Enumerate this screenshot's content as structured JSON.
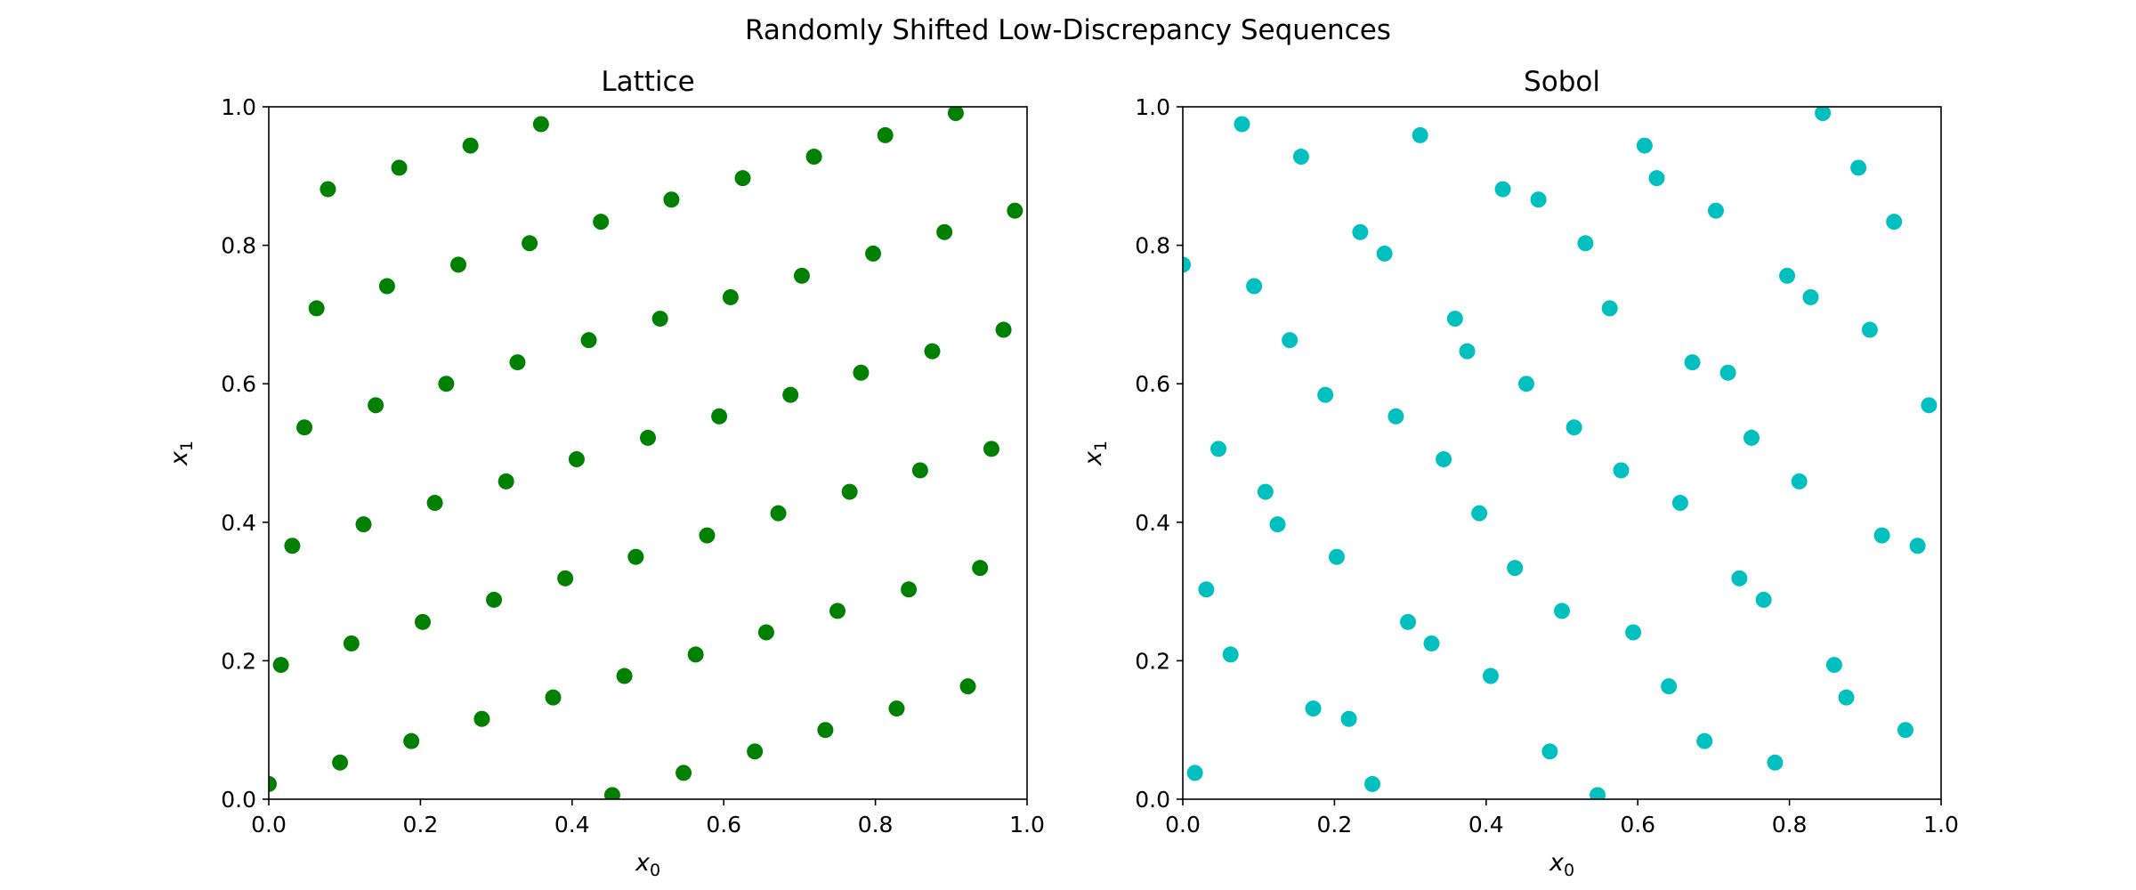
{
  "suptitle": "Randomly Shifted Low-Discrepancy Sequences",
  "chart_data": [
    {
      "type": "scatter",
      "title": "Lattice",
      "xlabel": "x",
      "xlabel_sub": "0",
      "ylabel": "x",
      "ylabel_sub": "1",
      "xlim": [
        0,
        1
      ],
      "ylim": [
        0,
        1
      ],
      "xticks": [
        "0.0",
        "0.2",
        "0.4",
        "0.6",
        "0.8",
        "1.0"
      ],
      "yticks": [
        "0.0",
        "0.2",
        "0.4",
        "0.6",
        "0.8",
        "1.0"
      ],
      "grid": false,
      "color": "#008000",
      "points": [
        [
          0.0,
          0.022
        ],
        [
          0.016,
          0.194
        ],
        [
          0.031,
          0.366
        ],
        [
          0.047,
          0.537
        ],
        [
          0.063,
          0.709
        ],
        [
          0.078,
          0.881
        ],
        [
          0.094,
          0.053
        ],
        [
          0.109,
          0.225
        ],
        [
          0.125,
          0.397
        ],
        [
          0.141,
          0.569
        ],
        [
          0.156,
          0.741
        ],
        [
          0.172,
          0.912
        ],
        [
          0.188,
          0.084
        ],
        [
          0.203,
          0.256
        ],
        [
          0.219,
          0.428
        ],
        [
          0.234,
          0.6
        ],
        [
          0.25,
          0.772
        ],
        [
          0.266,
          0.944
        ],
        [
          0.281,
          0.116
        ],
        [
          0.297,
          0.288
        ],
        [
          0.313,
          0.459
        ],
        [
          0.328,
          0.631
        ],
        [
          0.344,
          0.803
        ],
        [
          0.359,
          0.975
        ],
        [
          0.375,
          0.147
        ],
        [
          0.391,
          0.319
        ],
        [
          0.406,
          0.491
        ],
        [
          0.422,
          0.663
        ],
        [
          0.438,
          0.834
        ],
        [
          0.453,
          0.006
        ],
        [
          0.469,
          0.178
        ],
        [
          0.484,
          0.35
        ],
        [
          0.5,
          0.522
        ],
        [
          0.516,
          0.694
        ],
        [
          0.531,
          0.866
        ],
        [
          0.547,
          0.038
        ],
        [
          0.563,
          0.209
        ],
        [
          0.578,
          0.381
        ],
        [
          0.594,
          0.553
        ],
        [
          0.609,
          0.725
        ],
        [
          0.625,
          0.897
        ],
        [
          0.641,
          0.069
        ],
        [
          0.656,
          0.241
        ],
        [
          0.672,
          0.413
        ],
        [
          0.688,
          0.584
        ],
        [
          0.703,
          0.756
        ],
        [
          0.719,
          0.928
        ],
        [
          0.734,
          0.1
        ],
        [
          0.75,
          0.272
        ],
        [
          0.766,
          0.444
        ],
        [
          0.781,
          0.616
        ],
        [
          0.797,
          0.788
        ],
        [
          0.813,
          0.959
        ],
        [
          0.828,
          0.131
        ],
        [
          0.844,
          0.303
        ],
        [
          0.859,
          0.475
        ],
        [
          0.875,
          0.647
        ],
        [
          0.891,
          0.819
        ],
        [
          0.906,
          0.991
        ],
        [
          0.922,
          0.163
        ],
        [
          0.938,
          0.334
        ],
        [
          0.953,
          0.506
        ],
        [
          0.969,
          0.678
        ],
        [
          0.984,
          0.85
        ]
      ]
    },
    {
      "type": "scatter",
      "title": "Sobol",
      "xlabel": "x",
      "xlabel_sub": "0",
      "ylabel": "x",
      "ylabel_sub": "1",
      "xlim": [
        0,
        1
      ],
      "ylim": [
        0,
        1
      ],
      "xticks": [
        "0.0",
        "0.2",
        "0.4",
        "0.6",
        "0.8",
        "1.0"
      ],
      "yticks": [
        "0.0",
        "0.2",
        "0.4",
        "0.6",
        "0.8",
        "1.0"
      ],
      "grid": false,
      "color": "#00bfbf",
      "points": [
        [
          0.0,
          0.772
        ],
        [
          0.016,
          0.038
        ],
        [
          0.031,
          0.303
        ],
        [
          0.047,
          0.506
        ],
        [
          0.063,
          0.209
        ],
        [
          0.078,
          0.975
        ],
        [
          0.094,
          0.741
        ],
        [
          0.109,
          0.444
        ],
        [
          0.125,
          0.397
        ],
        [
          0.141,
          0.663
        ],
        [
          0.156,
          0.928
        ],
        [
          0.172,
          0.131
        ],
        [
          0.188,
          0.584
        ],
        [
          0.203,
          0.35
        ],
        [
          0.219,
          0.116
        ],
        [
          0.234,
          0.819
        ],
        [
          0.25,
          0.022
        ],
        [
          0.266,
          0.788
        ],
        [
          0.281,
          0.553
        ],
        [
          0.297,
          0.256
        ],
        [
          0.313,
          0.959
        ],
        [
          0.328,
          0.225
        ],
        [
          0.344,
          0.491
        ],
        [
          0.359,
          0.694
        ],
        [
          0.375,
          0.647
        ],
        [
          0.391,
          0.413
        ],
        [
          0.406,
          0.178
        ],
        [
          0.422,
          0.881
        ],
        [
          0.438,
          0.334
        ],
        [
          0.453,
          0.6
        ],
        [
          0.469,
          0.866
        ],
        [
          0.484,
          0.069
        ],
        [
          0.5,
          0.272
        ],
        [
          0.516,
          0.537
        ],
        [
          0.531,
          0.803
        ],
        [
          0.547,
          0.006
        ],
        [
          0.563,
          0.709
        ],
        [
          0.578,
          0.475
        ],
        [
          0.594,
          0.241
        ],
        [
          0.609,
          0.944
        ],
        [
          0.625,
          0.897
        ],
        [
          0.641,
          0.163
        ],
        [
          0.656,
          0.428
        ],
        [
          0.672,
          0.631
        ],
        [
          0.688,
          0.084
        ],
        [
          0.703,
          0.85
        ],
        [
          0.719,
          0.616
        ],
        [
          0.734,
          0.319
        ],
        [
          0.75,
          0.522
        ],
        [
          0.766,
          0.288
        ],
        [
          0.781,
          0.053
        ],
        [
          0.797,
          0.756
        ],
        [
          0.813,
          0.459
        ],
        [
          0.828,
          0.725
        ],
        [
          0.844,
          0.991
        ],
        [
          0.859,
          0.194
        ],
        [
          0.875,
          0.147
        ],
        [
          0.891,
          0.912
        ],
        [
          0.906,
          0.678
        ],
        [
          0.922,
          0.381
        ],
        [
          0.938,
          0.834
        ],
        [
          0.953,
          0.1
        ],
        [
          0.969,
          0.366
        ],
        [
          0.984,
          0.569
        ]
      ]
    }
  ]
}
